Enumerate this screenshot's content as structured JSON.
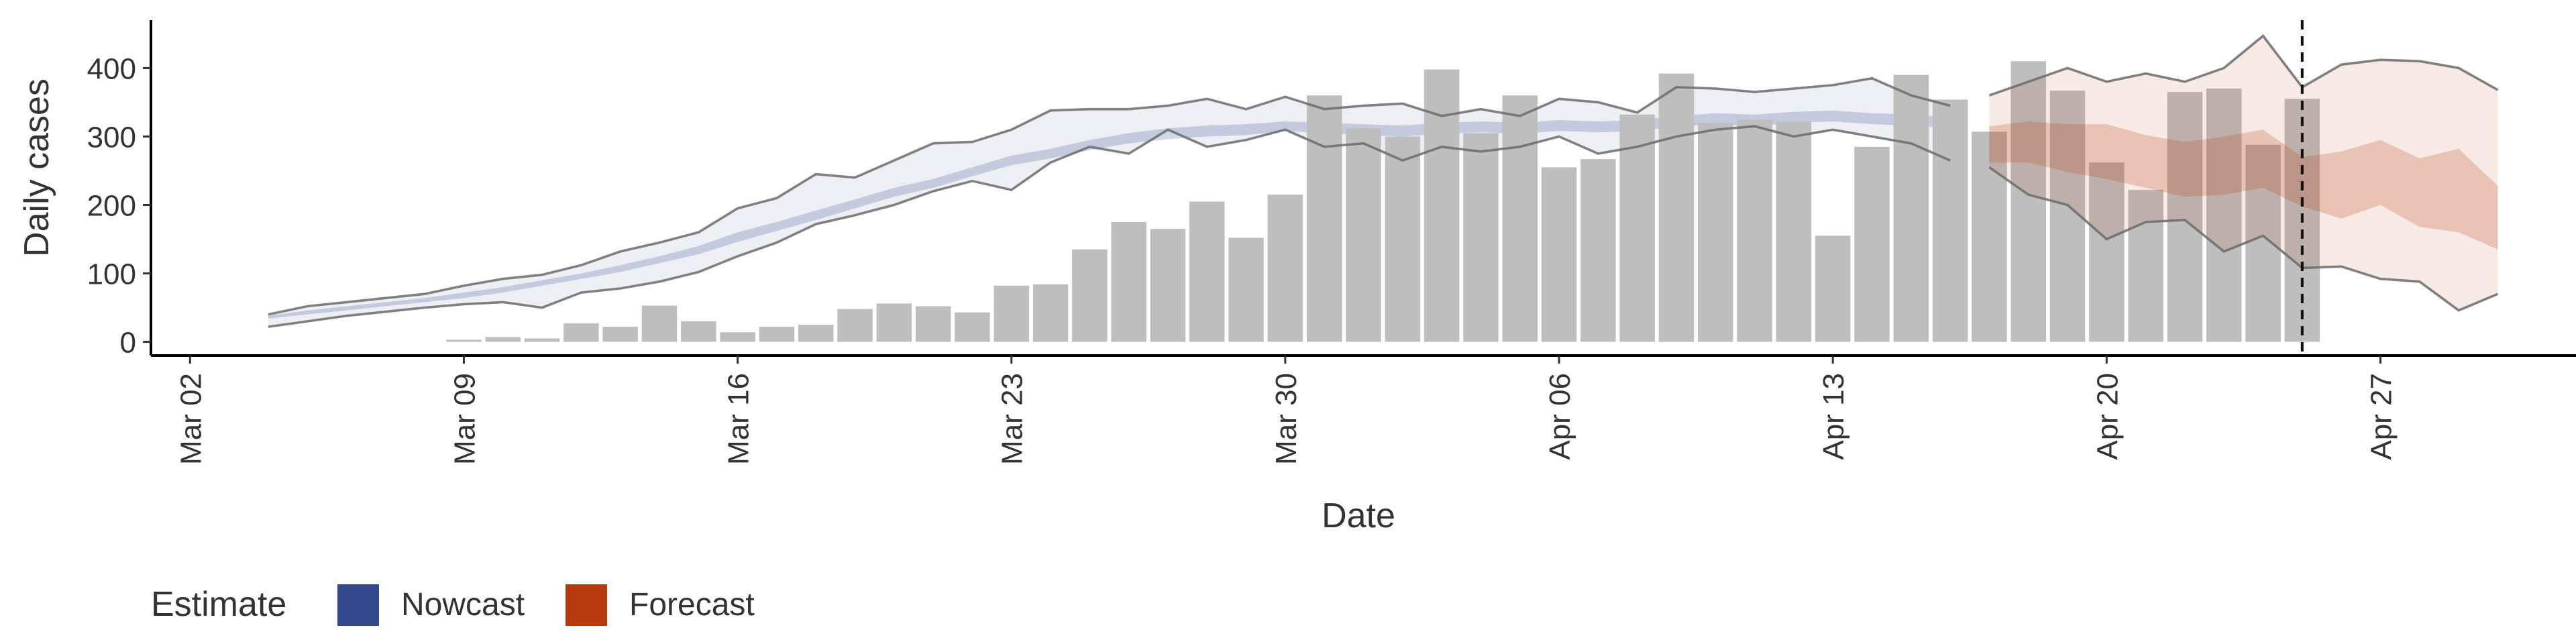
{
  "chart_data": {
    "type": "bar",
    "ylabel": "Daily cases",
    "xlabel": "Date",
    "x_ticks": [
      "2020-03-02",
      "2020-03-09",
      "2020-03-16",
      "2020-03-23",
      "2020-03-30",
      "2020-04-06",
      "2020-04-13",
      "2020-04-20",
      "2020-04-27"
    ],
    "x_tick_labels": [
      "Mar 02",
      "Mar 09",
      "Mar 16",
      "Mar 23",
      "Mar 30",
      "Apr 06",
      "Apr 13",
      "Apr 20",
      "Apr 27"
    ],
    "xlim": [
      "2020-03-01",
      "2020-05-02"
    ],
    "ylim": [
      -20,
      470
    ],
    "y_ticks": [
      0,
      100,
      200,
      300,
      400
    ],
    "vline_date": "2020-04-25",
    "legend": {
      "title": "Estimate",
      "placement": "bottom-left",
      "items": [
        {
          "label": "Nowcast",
          "color": "#34498b"
        },
        {
          "label": "Forecast",
          "color": "#b73a0c"
        }
      ]
    },
    "colors": {
      "bars": "#bebebe",
      "nowcast": "#34498b",
      "forecast": "#b73a0c",
      "bound_line": "#6b6b6b"
    },
    "bars": {
      "dates": [
        "2020-03-09",
        "2020-03-10",
        "2020-03-11",
        "2020-03-12",
        "2020-03-13",
        "2020-03-14",
        "2020-03-15",
        "2020-03-16",
        "2020-03-17",
        "2020-03-18",
        "2020-03-19",
        "2020-03-20",
        "2020-03-21",
        "2020-03-22",
        "2020-03-23",
        "2020-03-24",
        "2020-03-25",
        "2020-03-26",
        "2020-03-27",
        "2020-03-28",
        "2020-03-29",
        "2020-03-30",
        "2020-03-31",
        "2020-04-01",
        "2020-04-02",
        "2020-04-03",
        "2020-04-04",
        "2020-04-05",
        "2020-04-06",
        "2020-04-07",
        "2020-04-08",
        "2020-04-09",
        "2020-04-10",
        "2020-04-11",
        "2020-04-12",
        "2020-04-13",
        "2020-04-14",
        "2020-04-15",
        "2020-04-16",
        "2020-04-17",
        "2020-04-18",
        "2020-04-19",
        "2020-04-20",
        "2020-04-21",
        "2020-04-22",
        "2020-04-23",
        "2020-04-24",
        "2020-04-25"
      ],
      "values": [
        3,
        7,
        5,
        27,
        22,
        53,
        30,
        14,
        22,
        25,
        48,
        56,
        52,
        43,
        82,
        84,
        135,
        175,
        165,
        205,
        152,
        215,
        360,
        312,
        300,
        398,
        305,
        360,
        255,
        267,
        332,
        392,
        320,
        325,
        322,
        155,
        285,
        390,
        354,
        307,
        410,
        367,
        262,
        222,
        365,
        370,
        288,
        355
      ]
    },
    "nowcast": {
      "dates": [
        "2020-03-04",
        "2020-03-05",
        "2020-03-06",
        "2020-03-07",
        "2020-03-08",
        "2020-03-09",
        "2020-03-10",
        "2020-03-11",
        "2020-03-12",
        "2020-03-13",
        "2020-03-14",
        "2020-03-15",
        "2020-03-16",
        "2020-03-17",
        "2020-03-18",
        "2020-03-19",
        "2020-03-20",
        "2020-03-21",
        "2020-03-22",
        "2020-03-23",
        "2020-03-24",
        "2020-03-25",
        "2020-03-26",
        "2020-03-27",
        "2020-03-28",
        "2020-03-29",
        "2020-03-30",
        "2020-03-31",
        "2020-04-01",
        "2020-04-02",
        "2020-04-03",
        "2020-04-04",
        "2020-04-05",
        "2020-04-06",
        "2020-04-07",
        "2020-04-08",
        "2020-04-09",
        "2020-04-10",
        "2020-04-11",
        "2020-04-12",
        "2020-04-13",
        "2020-04-14",
        "2020-04-15",
        "2020-04-16"
      ],
      "outer_lower": [
        22,
        30,
        38,
        44,
        50,
        55,
        58,
        50,
        72,
        78,
        88,
        102,
        125,
        145,
        172,
        185,
        200,
        220,
        235,
        222,
        262,
        285,
        275,
        310,
        285,
        295,
        310,
        285,
        290,
        265,
        285,
        278,
        285,
        300,
        275,
        285,
        300,
        310,
        315,
        300,
        310,
        300,
        290,
        265
      ],
      "outer_upper": [
        40,
        52,
        58,
        64,
        70,
        82,
        92,
        98,
        112,
        132,
        145,
        160,
        195,
        210,
        245,
        240,
        265,
        290,
        292,
        310,
        338,
        340,
        340,
        345,
        355,
        340,
        358,
        340,
        345,
        348,
        330,
        340,
        330,
        355,
        350,
        335,
        372,
        370,
        365,
        370,
        375,
        385,
        360,
        345
      ],
      "inner_lower": [
        34,
        40,
        46,
        52,
        58,
        64,
        72,
        82,
        92,
        102,
        115,
        128,
        146,
        162,
        178,
        195,
        212,
        225,
        242,
        258,
        268,
        280,
        290,
        296,
        300,
        302,
        308,
        305,
        302,
        300,
        304,
        306,
        304,
        308,
        306,
        308,
        315,
        318,
        315,
        320,
        322,
        318,
        316,
        312
      ],
      "inner_upper": [
        38,
        46,
        52,
        58,
        64,
        72,
        80,
        90,
        100,
        112,
        125,
        140,
        160,
        175,
        192,
        208,
        225,
        238,
        255,
        272,
        282,
        295,
        305,
        312,
        316,
        318,
        322,
        320,
        318,
        316,
        320,
        322,
        320,
        324,
        322,
        324,
        330,
        334,
        332,
        336,
        338,
        334,
        332,
        328
      ]
    },
    "forecast": {
      "dates": [
        "2020-04-17",
        "2020-04-18",
        "2020-04-19",
        "2020-04-20",
        "2020-04-21",
        "2020-04-22",
        "2020-04-23",
        "2020-04-24",
        "2020-04-25",
        "2020-04-26",
        "2020-04-27",
        "2020-04-28",
        "2020-04-29",
        "2020-04-30"
      ],
      "outer_lower": [
        255,
        215,
        200,
        150,
        175,
        178,
        132,
        155,
        108,
        110,
        92,
        88,
        46,
        70
      ],
      "outer_upper": [
        360,
        380,
        400,
        380,
        392,
        380,
        400,
        447,
        372,
        405,
        412,
        410,
        400,
        368
      ],
      "inner_lower": [
        262,
        262,
        248,
        238,
        225,
        212,
        215,
        225,
        198,
        180,
        200,
        168,
        160,
        135
      ],
      "inner_upper": [
        315,
        322,
        318,
        318,
        302,
        292,
        300,
        310,
        270,
        278,
        295,
        268,
        282,
        228
      ]
    }
  }
}
